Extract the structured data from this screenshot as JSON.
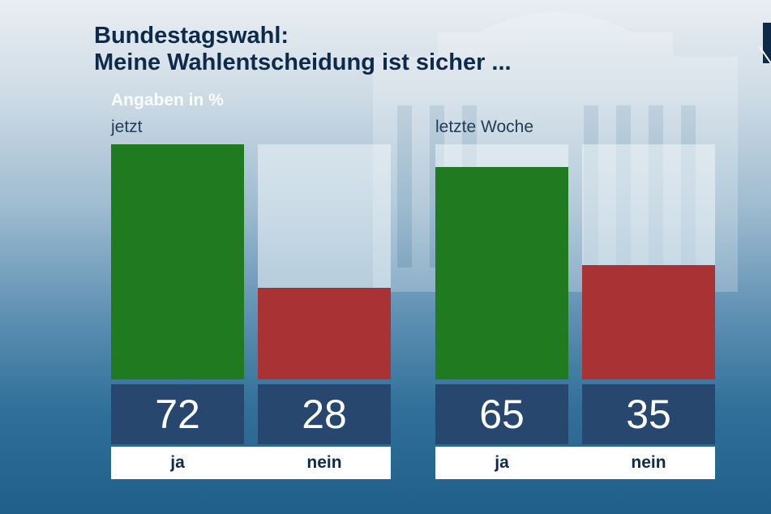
{
  "header": {
    "title_line1": "Bundestagswahl:",
    "title_line2": "Meine Wahlentscheidung ist sicher ..."
  },
  "colors": {
    "ja": "#1f7a20",
    "nein": "#a83234"
  },
  "chart_data": {
    "type": "bar",
    "unit_label": "Angaben in %",
    "ylim": [
      0,
      72
    ],
    "categories": [
      "ja",
      "nein"
    ],
    "groups": [
      {
        "label": "jetzt",
        "values": [
          72,
          28
        ]
      },
      {
        "label": "letzte Woche",
        "values": [
          65,
          35
        ]
      }
    ]
  }
}
